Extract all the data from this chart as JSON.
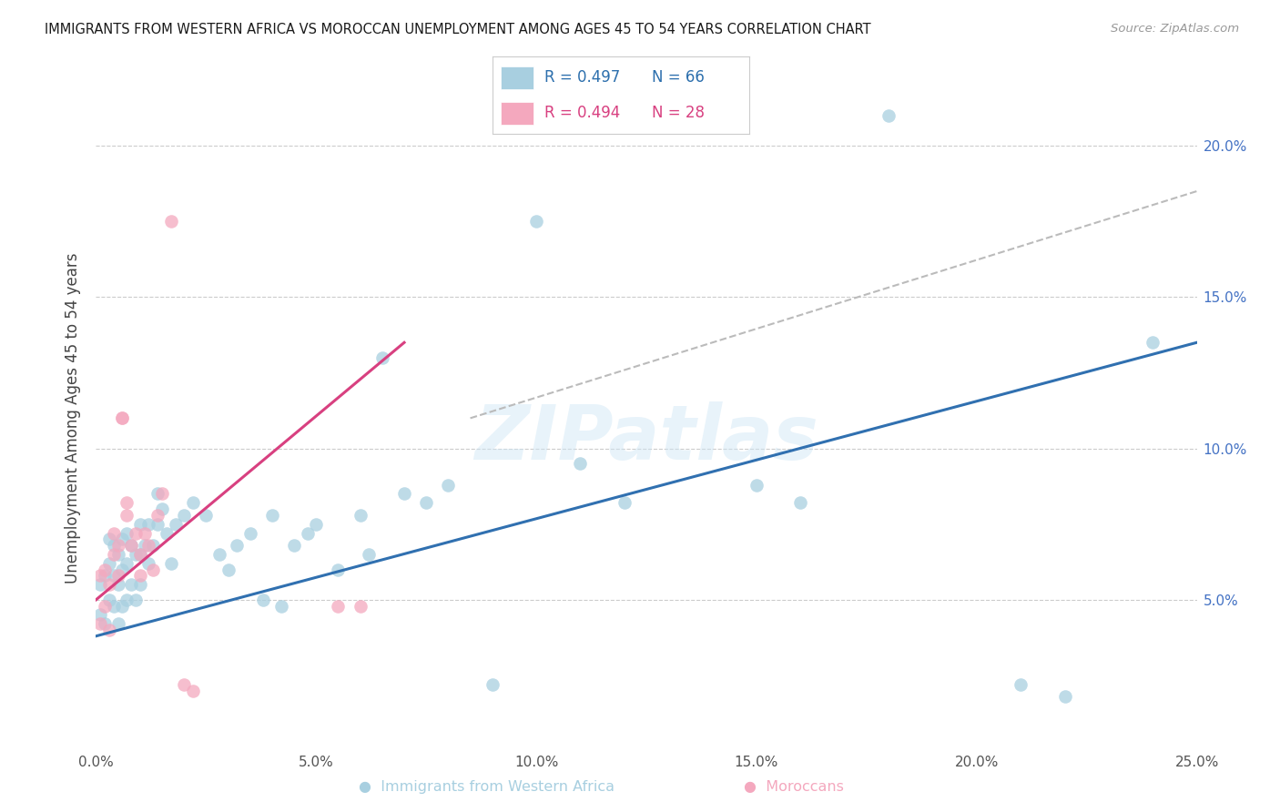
{
  "title": "IMMIGRANTS FROM WESTERN AFRICA VS MOROCCAN UNEMPLOYMENT AMONG AGES 45 TO 54 YEARS CORRELATION CHART",
  "source": "Source: ZipAtlas.com",
  "ylabel": "Unemployment Among Ages 45 to 54 years",
  "xlim": [
    0.0,
    0.25
  ],
  "ylim": [
    0.0,
    0.22
  ],
  "xticks": [
    0.0,
    0.05,
    0.1,
    0.15,
    0.2,
    0.25
  ],
  "yticks": [
    0.05,
    0.1,
    0.15,
    0.2
  ],
  "xtick_labels": [
    "0.0%",
    "5.0%",
    "10.0%",
    "15.0%",
    "20.0%",
    "25.0%"
  ],
  "ytick_labels_right": [
    "5.0%",
    "10.0%",
    "15.0%",
    "20.0%"
  ],
  "blue_color": "#a8cfe0",
  "pink_color": "#f4a8be",
  "blue_line_color": "#3070b0",
  "pink_line_color": "#d84080",
  "legend_R_blue": "R = 0.497",
  "legend_N_blue": "N = 66",
  "legend_R_pink": "R = 0.494",
  "legend_N_pink": "N = 28",
  "watermark": "ZIPatlas",
  "blue_scatter_x": [
    0.001,
    0.001,
    0.002,
    0.002,
    0.003,
    0.003,
    0.003,
    0.004,
    0.004,
    0.004,
    0.005,
    0.005,
    0.005,
    0.006,
    0.006,
    0.006,
    0.007,
    0.007,
    0.007,
    0.008,
    0.008,
    0.009,
    0.009,
    0.01,
    0.01,
    0.01,
    0.011,
    0.012,
    0.012,
    0.013,
    0.014,
    0.014,
    0.015,
    0.016,
    0.017,
    0.018,
    0.02,
    0.022,
    0.025,
    0.028,
    0.03,
    0.032,
    0.035,
    0.038,
    0.04,
    0.042,
    0.045,
    0.048,
    0.05,
    0.055,
    0.06,
    0.062,
    0.065,
    0.07,
    0.075,
    0.08,
    0.09,
    0.1,
    0.11,
    0.12,
    0.15,
    0.16,
    0.18,
    0.21,
    0.22,
    0.24
  ],
  "blue_scatter_y": [
    0.045,
    0.055,
    0.042,
    0.058,
    0.05,
    0.062,
    0.07,
    0.048,
    0.058,
    0.068,
    0.042,
    0.055,
    0.065,
    0.048,
    0.06,
    0.07,
    0.05,
    0.062,
    0.072,
    0.055,
    0.068,
    0.05,
    0.065,
    0.055,
    0.065,
    0.075,
    0.068,
    0.062,
    0.075,
    0.068,
    0.075,
    0.085,
    0.08,
    0.072,
    0.062,
    0.075,
    0.078,
    0.082,
    0.078,
    0.065,
    0.06,
    0.068,
    0.072,
    0.05,
    0.078,
    0.048,
    0.068,
    0.072,
    0.075,
    0.06,
    0.078,
    0.065,
    0.13,
    0.085,
    0.082,
    0.088,
    0.022,
    0.175,
    0.095,
    0.082,
    0.088,
    0.082,
    0.21,
    0.022,
    0.018,
    0.135
  ],
  "pink_scatter_x": [
    0.001,
    0.001,
    0.002,
    0.002,
    0.003,
    0.003,
    0.004,
    0.004,
    0.005,
    0.005,
    0.006,
    0.006,
    0.007,
    0.007,
    0.008,
    0.009,
    0.01,
    0.01,
    0.011,
    0.012,
    0.013,
    0.014,
    0.015,
    0.017,
    0.02,
    0.022,
    0.055,
    0.06
  ],
  "pink_scatter_y": [
    0.042,
    0.058,
    0.048,
    0.06,
    0.04,
    0.055,
    0.065,
    0.072,
    0.058,
    0.068,
    0.11,
    0.11,
    0.078,
    0.082,
    0.068,
    0.072,
    0.058,
    0.065,
    0.072,
    0.068,
    0.06,
    0.078,
    0.085,
    0.175,
    0.022,
    0.02,
    0.048,
    0.048
  ],
  "blue_reg": [
    0.0,
    0.25,
    0.038,
    0.135
  ],
  "pink_reg": [
    0.0,
    0.07,
    0.05,
    0.135
  ],
  "dashed_reg": [
    0.085,
    0.25,
    0.11,
    0.185
  ]
}
